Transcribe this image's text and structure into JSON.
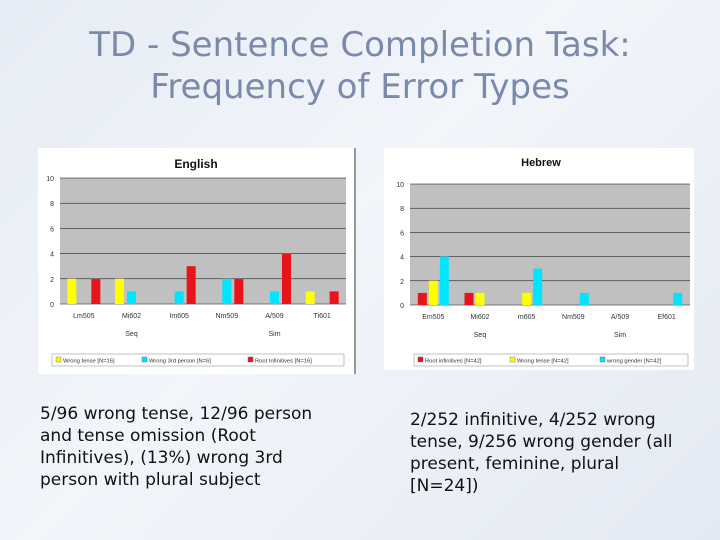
{
  "slide": {
    "title_line1": "TD - Sentence Completion Task:",
    "title_line2": "Frequency of Error Types",
    "english_caption": "5/96 wrong tense, 12/96 person and tense omission (Root Infinitives), (13%) wrong 3rd person with plural subject",
    "hebrew_caption": "2/252 infinitive, 4/252 wrong tense, 9/256 wrong gender (all present, feminine, plural [N=24])"
  },
  "colors": {
    "wrong_tense": "#ffff00",
    "wrong_3rd_person": "#00e5ff",
    "root_infinitives": "#e8141c",
    "wrong_gender": "#00e5ff",
    "plot_bg": "#c0c0c0"
  },
  "chart_data": [
    {
      "type": "bar",
      "title": "English",
      "categories": [
        "Lm505",
        "Mi602",
        "Im605",
        "Nm509",
        "A/509",
        "Ti601"
      ],
      "groups": [
        {
          "label": "Seq",
          "categories": [
            "Lm505",
            "Mi602",
            "Im605"
          ]
        },
        {
          "label": "Sim",
          "categories": [
            "Nm509",
            "A/509",
            "Ti601"
          ]
        }
      ],
      "series": [
        {
          "name": "Wrong tense [N=16]",
          "color": "#ffff00",
          "values": [
            2,
            2,
            0,
            0,
            0,
            1
          ]
        },
        {
          "name": "Wrong 3rd person [N=6]",
          "color": "#00e5ff",
          "values": [
            0,
            1,
            1,
            2,
            1,
            0
          ]
        },
        {
          "name": "Root Infinitives [N=16]",
          "color": "#e8141c",
          "values": [
            2,
            0,
            3,
            2,
            4,
            1
          ]
        }
      ],
      "ylim": [
        0,
        10
      ],
      "yticks": [
        0,
        2,
        4,
        6,
        8,
        10
      ],
      "grid": true,
      "legend": "bottom"
    },
    {
      "type": "bar",
      "title": "Hebrew",
      "categories": [
        "Em505",
        "Mi602",
        "m605",
        "Nm509",
        "A/509",
        "Ef601"
      ],
      "groups": [
        {
          "label": "Seq",
          "categories": [
            "Em505",
            "Mi602",
            "m605"
          ]
        },
        {
          "label": "Sim",
          "categories": [
            "Nm509",
            "A/509",
            "Ef601"
          ]
        }
      ],
      "series": [
        {
          "name": "Root infinitives [N=42]",
          "color": "#e8141c",
          "values": [
            1,
            1,
            0,
            0,
            0,
            0
          ]
        },
        {
          "name": "Wrong tense [N=42]",
          "color": "#ffff00",
          "values": [
            2,
            1,
            1,
            0,
            0,
            0
          ]
        },
        {
          "name": "wrong gender [N=42]",
          "color": "#00e5ff",
          "values": [
            4,
            0,
            3,
            1,
            0,
            1
          ]
        }
      ],
      "ylim": [
        0,
        10
      ],
      "yticks": [
        0,
        2,
        4,
        6,
        8,
        10
      ],
      "grid": true,
      "legend": "bottom"
    }
  ]
}
